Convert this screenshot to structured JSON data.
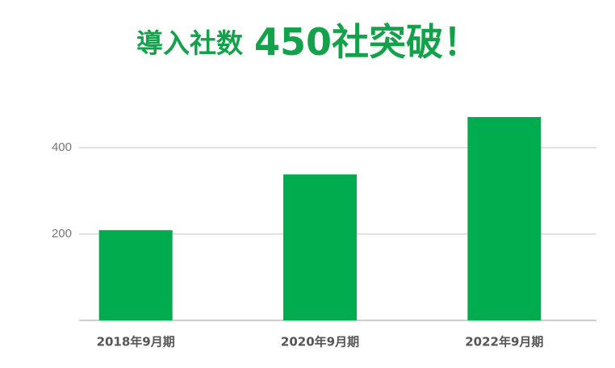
{
  "chart_data": {
    "type": "bar",
    "title": "導入社数",
    "title_emphasis": "450社突破！",
    "categories": [
      "2018年9月期",
      "2020年9月期",
      "2022年9月期"
    ],
    "values": [
      209,
      338,
      471
    ],
    "color": "#00ac4e",
    "ylim": [
      0,
      500
    ],
    "yticks": [
      200,
      400
    ],
    "grid": true
  }
}
